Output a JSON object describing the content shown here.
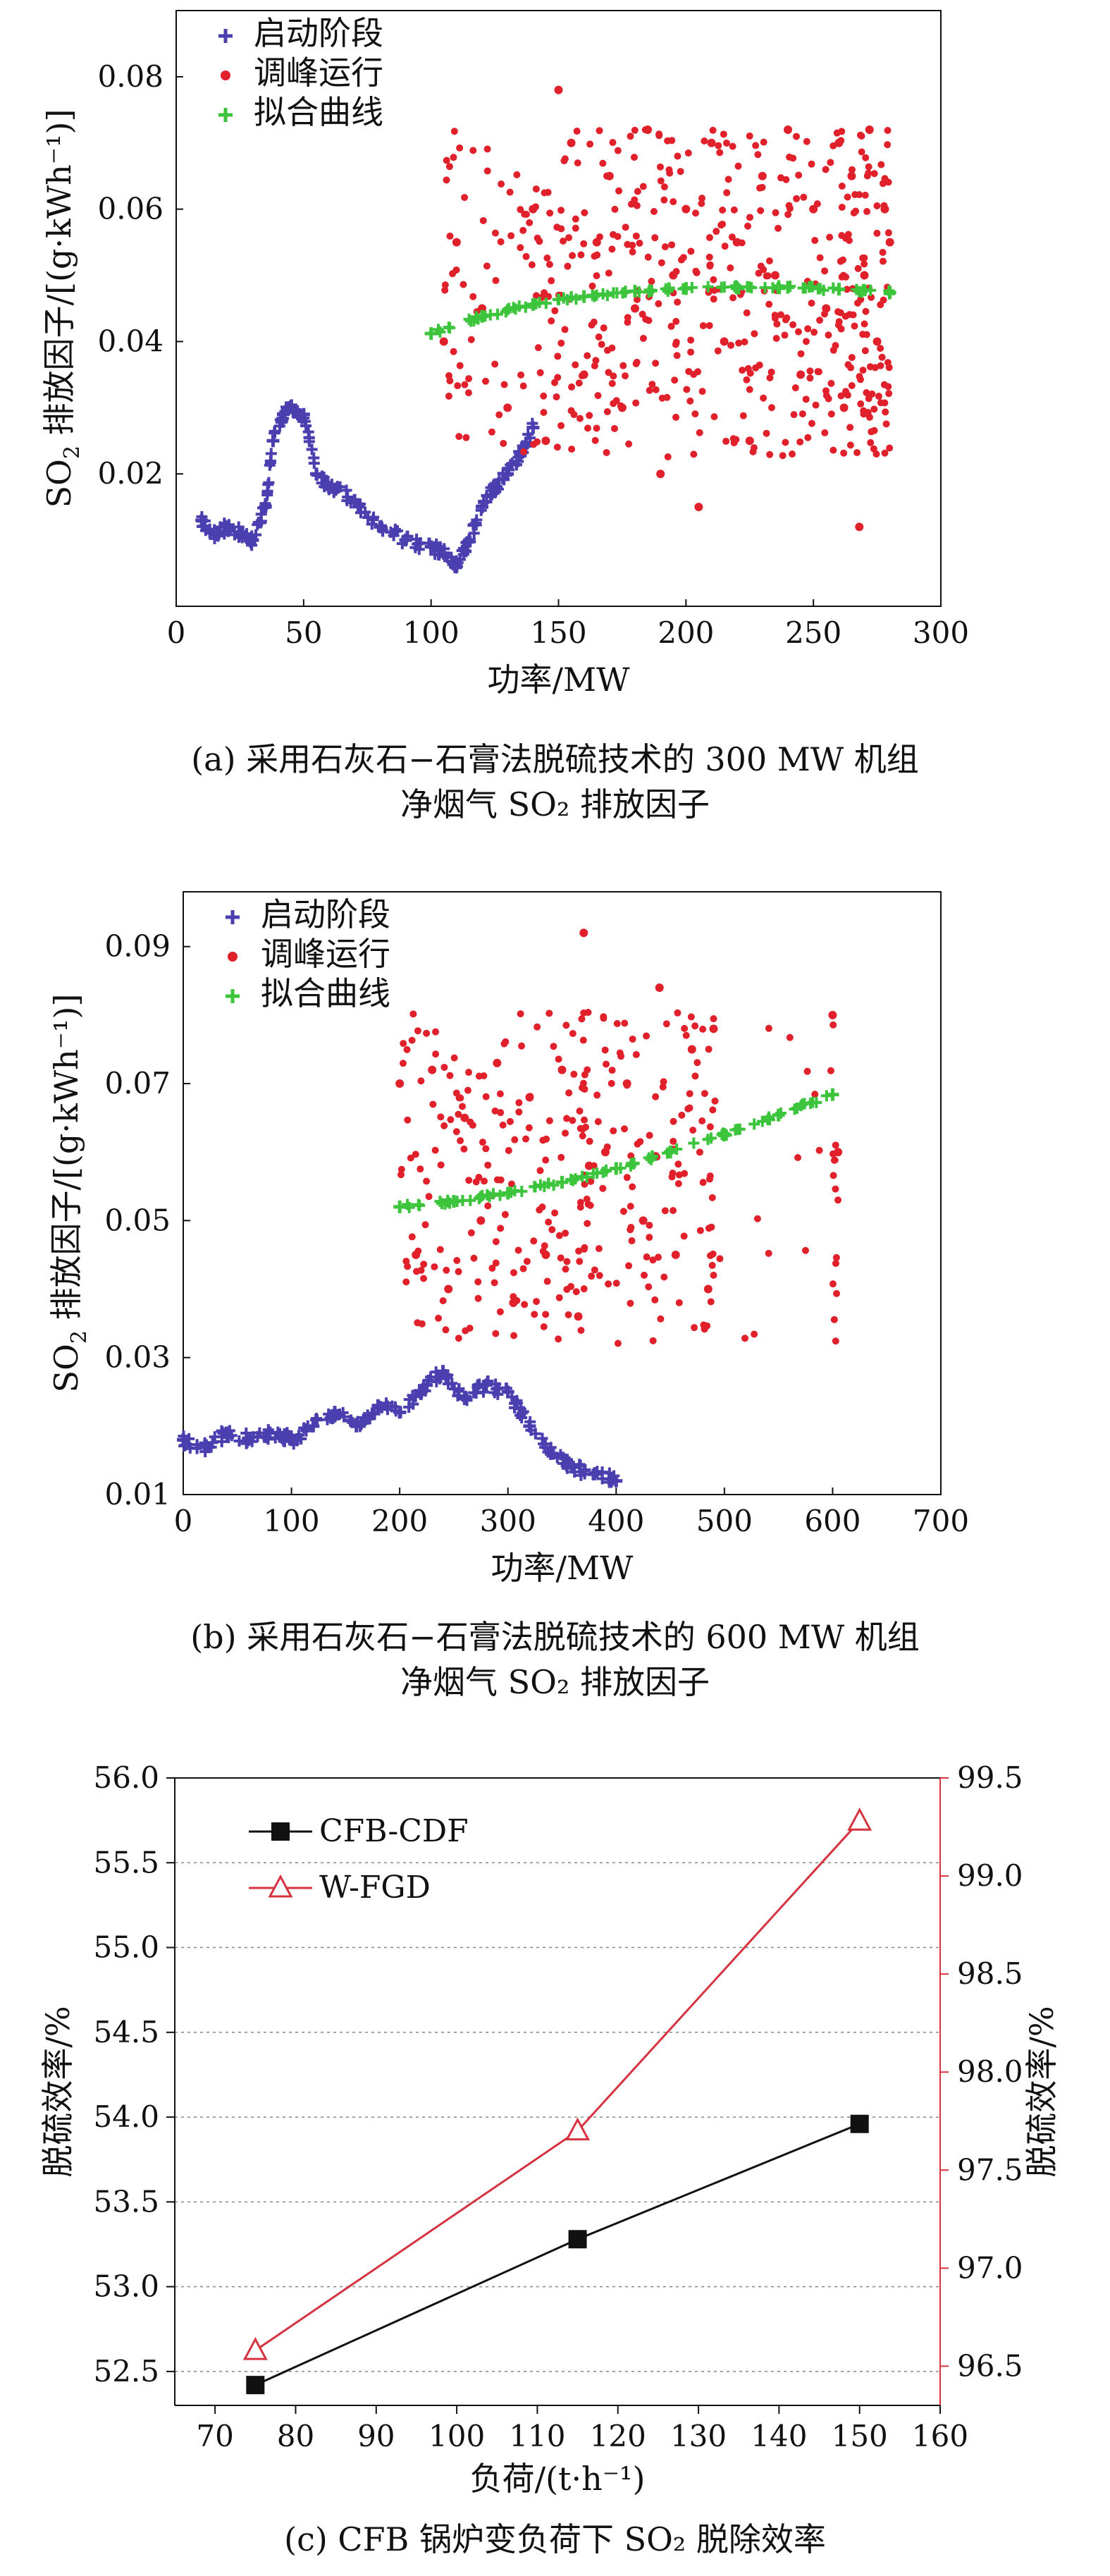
{
  "charts": {
    "a": {
      "xlabel": "功率/MW",
      "ylabel_prefix": "SO",
      "ylabel_sub": "2",
      "ylabel_suffix": " 排放因子/[(g·kWh⁻¹)]",
      "caption_line1": "(a) 采用石灰石−石膏法脱硫技术的 300 MW 机组",
      "caption_line2": "净烟气 SO₂ 排放因子",
      "legend": [
        "启动阶段",
        "调峰运行",
        "拟合曲线"
      ]
    },
    "b": {
      "xlabel": "功率/MW",
      "ylabel_prefix": "SO",
      "ylabel_sub": "2",
      "ylabel_suffix": " 排放因子/[(g·kWh⁻¹)]",
      "caption_line1": "(b) 采用石灰石−石膏法脱硫技术的 600 MW 机组",
      "caption_line2": "净烟气 SO₂ 排放因子",
      "legend": [
        "启动阶段",
        "调峰运行",
        "拟合曲线"
      ]
    },
    "c": {
      "xlabel": "负荷/(t·h⁻¹)",
      "ylabel_left": "脱硫效率/%",
      "ylabel_right": "脱硫效率/%",
      "caption": "(c) CFB 锅炉变负荷下 SO₂ 脱除效率",
      "legend": [
        "CFB-CDF",
        "W-FGD"
      ]
    }
  },
  "colors": {
    "startup": "#4b3fb0",
    "peak": "#e0202a",
    "fit": "#3cc43c",
    "cfb": "#111111",
    "wfgd": "#d63340",
    "grid": "#888888"
  },
  "chart_data": [
    {
      "type": "scatter",
      "id": "a",
      "xlim": [
        0,
        300
      ],
      "ylim": [
        0.0,
        0.09
      ],
      "xticks": [
        0,
        50,
        100,
        150,
        200,
        250,
        300
      ],
      "yticks": [
        0.02,
        0.04,
        0.06,
        0.08
      ],
      "xlabel": "功率/MW",
      "ylabel": "SO2 排放因子/[(g·kWh⁻¹)]",
      "series": [
        {
          "name": "启动阶段",
          "marker": "plus",
          "color": "#4b3fb0",
          "x": [
            10,
            15,
            20,
            25,
            30,
            35,
            38,
            42,
            45,
            50,
            55,
            60,
            70,
            80,
            90,
            100,
            105,
            110,
            115,
            120,
            125,
            130,
            135,
            140
          ],
          "y": [
            0.013,
            0.011,
            0.012,
            0.011,
            0.01,
            0.015,
            0.025,
            0.029,
            0.03,
            0.029,
            0.02,
            0.018,
            0.016,
            0.012,
            0.01,
            0.009,
            0.008,
            0.006,
            0.01,
            0.015,
            0.018,
            0.02,
            0.023,
            0.027
          ]
        },
        {
          "name": "调峰运行",
          "marker": "dot",
          "color": "#e0202a",
          "x": [
            105,
            110,
            120,
            130,
            140,
            145,
            150,
            155,
            160,
            165,
            170,
            175,
            180,
            185,
            190,
            195,
            200,
            205,
            210,
            215,
            220,
            225,
            230,
            235,
            240,
            245,
            250,
            255,
            260,
            262,
            265,
            268,
            270,
            272,
            275,
            278,
            280
          ],
          "y": [
            0.04,
            0.055,
            0.045,
            0.03,
            0.06,
            0.025,
            0.078,
            0.07,
            0.035,
            0.055,
            0.065,
            0.03,
            0.045,
            0.072,
            0.02,
            0.05,
            0.06,
            0.015,
            0.07,
            0.04,
            0.055,
            0.025,
            0.065,
            0.05,
            0.072,
            0.035,
            0.06,
            0.045,
            0.07,
            0.03,
            0.065,
            0.012,
            0.05,
            0.072,
            0.04,
            0.06,
            0.055
          ]
        },
        {
          "name": "拟合曲线",
          "marker": "plus",
          "color": "#3cc43c",
          "x": [
            100,
            120,
            140,
            160,
            180,
            200,
            220,
            240,
            260,
            280
          ],
          "y": [
            0.0412,
            0.0438,
            0.0456,
            0.0468,
            0.0476,
            0.048,
            0.0482,
            0.0482,
            0.0479,
            0.0474
          ]
        }
      ]
    },
    {
      "type": "scatter",
      "id": "b",
      "xlim": [
        0,
        700
      ],
      "ylim": [
        0.01,
        0.098
      ],
      "xticks": [
        0,
        100,
        200,
        300,
        400,
        500,
        600,
        700
      ],
      "yticks": [
        0.01,
        0.03,
        0.05,
        0.07,
        0.09
      ],
      "xlabel": "功率/MW",
      "ylabel": "SO2 排放因子/[(g·kWh⁻¹)]",
      "series": [
        {
          "name": "启动阶段",
          "marker": "plus",
          "color": "#4b3fb0",
          "x": [
            0,
            20,
            40,
            60,
            80,
            100,
            120,
            140,
            160,
            180,
            200,
            220,
            240,
            260,
            280,
            300,
            320,
            340,
            360,
            380,
            400
          ],
          "y": [
            0.018,
            0.017,
            0.019,
            0.018,
            0.019,
            0.018,
            0.02,
            0.022,
            0.02,
            0.023,
            0.022,
            0.025,
            0.028,
            0.024,
            0.026,
            0.025,
            0.02,
            0.016,
            0.014,
            0.013,
            0.012
          ]
        },
        {
          "name": "调峰运行",
          "marker": "dot",
          "color": "#e0202a",
          "x": [
            200,
            215,
            230,
            245,
            260,
            275,
            290,
            305,
            320,
            335,
            350,
            365,
            370,
            375,
            390,
            410,
            425,
            440,
            455,
            470,
            485,
            490,
            600,
            605
          ],
          "y": [
            0.07,
            0.045,
            0.072,
            0.04,
            0.065,
            0.05,
            0.073,
            0.038,
            0.068,
            0.045,
            0.072,
            0.036,
            0.092,
            0.058,
            0.06,
            0.07,
            0.05,
            0.084,
            0.045,
            0.075,
            0.04,
            0.078,
            0.08,
            0.06
          ]
        },
        {
          "name": "拟合曲线",
          "marker": "plus",
          "color": "#3cc43c",
          "x": [
            200,
            250,
            300,
            350,
            400,
            450,
            500,
            550,
            600
          ],
          "y": [
            0.052,
            0.0528,
            0.054,
            0.0556,
            0.0576,
            0.06,
            0.0626,
            0.0654,
            0.0684
          ]
        }
      ]
    },
    {
      "type": "line",
      "id": "c",
      "xlim": [
        65,
        160
      ],
      "xticks": [
        70,
        80,
        90,
        100,
        110,
        120,
        130,
        140,
        150,
        160
      ],
      "xlabel": "负荷/(t·h⁻¹)",
      "ylim_left": [
        52.3,
        56.0
      ],
      "yticks_left": [
        52.5,
        53.0,
        53.5,
        54.0,
        54.5,
        55.0,
        55.5,
        56.0
      ],
      "ylim_right": [
        96.3,
        99.5
      ],
      "yticks_right": [
        96.5,
        97.0,
        97.5,
        98.0,
        98.5,
        99.0,
        99.5
      ],
      "ylabel_left": "脱硫效率/%",
      "ylabel_right": "脱硫效率/%",
      "series": [
        {
          "name": "CFB-CDF",
          "axis": "left",
          "marker": "square",
          "color": "#111111",
          "x": [
            75,
            115,
            150
          ],
          "y": [
            52.42,
            53.28,
            53.96
          ]
        },
        {
          "name": "W-FGD",
          "axis": "right",
          "marker": "triangle",
          "color": "#d63340",
          "x": [
            75,
            115,
            150
          ],
          "y": [
            96.58,
            97.7,
            99.28
          ]
        }
      ]
    }
  ]
}
